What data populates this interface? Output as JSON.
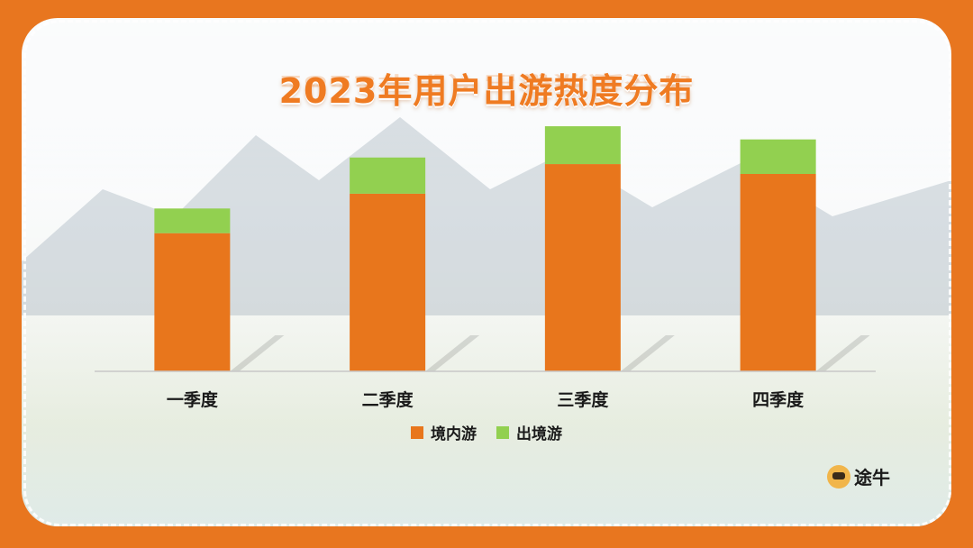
{
  "title": "2023年用户出游热度分布",
  "colors": {
    "domestic": "#e8761c",
    "outbound": "#92d050",
    "frame": "#e8761f"
  },
  "legend": [
    {
      "label": "境内游",
      "color": "#e8761c"
    },
    {
      "label": "出境游",
      "color": "#92d050"
    }
  ],
  "logo": {
    "text": "途牛",
    "icon": "tuniu-logo-icon"
  },
  "chart_data": {
    "type": "bar",
    "stacked": true,
    "categories": [
      "一季度",
      "二季度",
      "三季度",
      "四季度"
    ],
    "series": [
      {
        "name": "境内游",
        "values": [
          42,
          54,
          63,
          60
        ]
      },
      {
        "name": "出境游",
        "values": [
          7.5,
          11,
          11.5,
          10.5
        ]
      }
    ],
    "ylim": [
      0,
      80
    ],
    "grid": false,
    "legend_position": "bottom"
  }
}
